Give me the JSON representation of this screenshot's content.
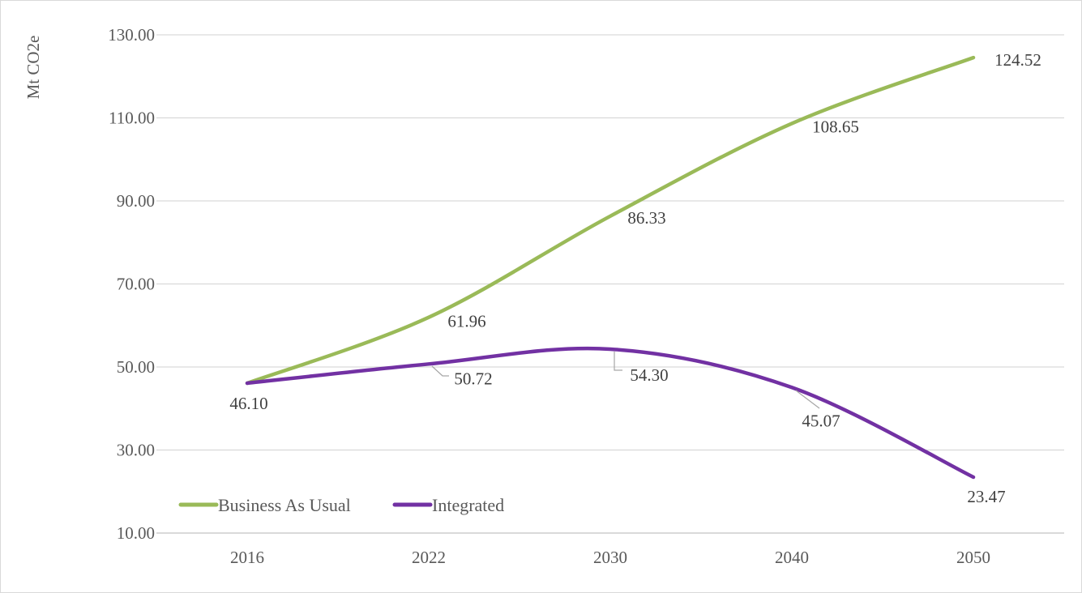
{
  "chart_data": {
    "type": "line",
    "title": "",
    "ylabel": "Mt CO2e",
    "xlabel": "",
    "categories": [
      "2016",
      "2022",
      "2030",
      "2040",
      "2050"
    ],
    "series": [
      {
        "name": "Business As Usual",
        "color": "#9aba58",
        "values": [
          46.1,
          61.96,
          86.33,
          108.65,
          124.52
        ],
        "labels": [
          "46.10",
          "61.96",
          "86.33",
          "108.65",
          "124.52"
        ]
      },
      {
        "name": "Integrated",
        "color": "#7231a3",
        "values": [
          46.1,
          50.72,
          54.3,
          45.07,
          23.47
        ],
        "labels": [
          null,
          "50.72",
          "54.30",
          "45.07",
          "23.47"
        ]
      }
    ],
    "ylim": [
      10,
      130
    ],
    "ytick_step": 20,
    "y_ticks": [
      "130.00",
      "110.00",
      "90.00",
      "70.00",
      "50.00",
      "30.00",
      "10.00"
    ],
    "grid": true,
    "legend_position": "bottom-left-inside"
  },
  "colors": {
    "grid": "#d9d9d9",
    "axis": "#d9d9d9",
    "tick_text": "#595959",
    "data_label_text": "#404040",
    "leader_line": "#a6a6a6",
    "border": "#d9d9d9",
    "background": "#ffffff"
  }
}
